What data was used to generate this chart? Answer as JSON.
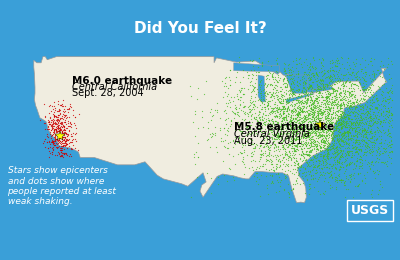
{
  "title": "Did You Feel It?",
  "background_color": "#3a9fd8",
  "map_fill_color": "#f0ede0",
  "map_edge_color": "#999999",
  "title_color": "white",
  "title_fontsize": 11,
  "west_quake_label": "M6.0 earthquake",
  "west_quake_sublabel": "Central California",
  "west_quake_date": "Sept. 28, 2004",
  "east_quake_label": "M5.8 earthquake",
  "east_quake_sublabel": "Central Virginia",
  "east_quake_date": "Aug. 23, 2011",
  "west_dot_color": "#cc0000",
  "east_dot_color": "#44bb22",
  "star_color": "#ffff00",
  "footnote": "Stars show epicenters\nand dots show where\npeople reported at least\nweak shaking.",
  "footnote_color": "white",
  "footnote_fontsize": 6.5,
  "label_fontsize": 7.0,
  "label_bold_fontsize": 7.5,
  "usgs_color": "white",
  "usgs_fontsize": 9
}
